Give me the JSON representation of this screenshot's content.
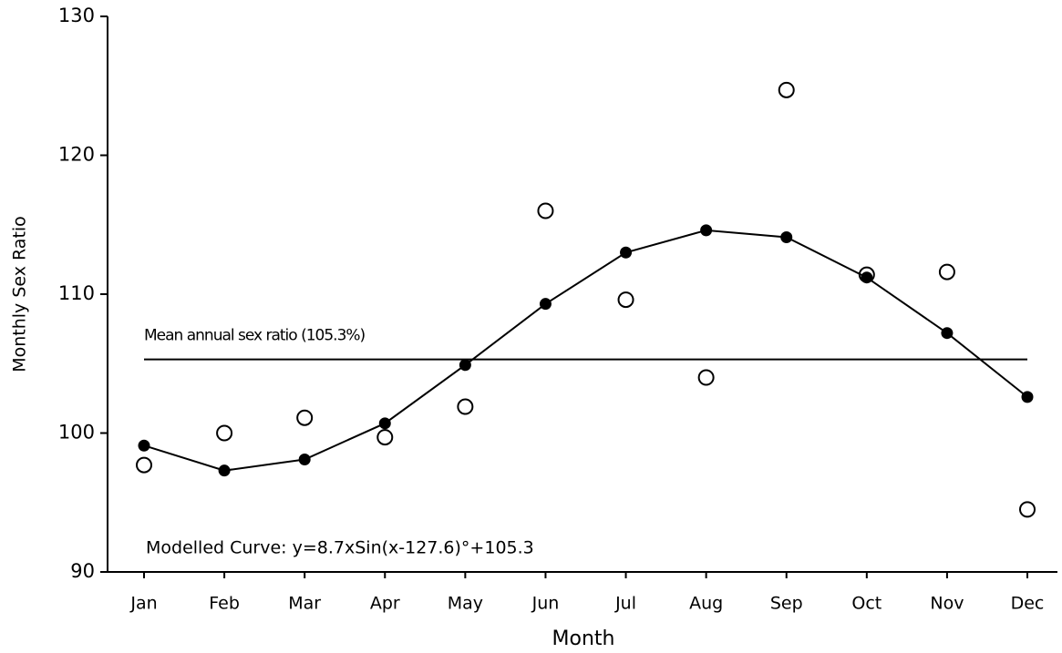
{
  "chart_data": {
    "type": "line",
    "x_label": "Month",
    "y_label": "Monthly Sex Ratio",
    "categories": [
      "Jan",
      "Feb",
      "Mar",
      "Apr",
      "May",
      "Jun",
      "Jul",
      "Aug",
      "Sep",
      "Oct",
      "Nov",
      "Dec"
    ],
    "series": [
      {
        "color": "#000000",
        "marker": "open",
        "line": false,
        "values": [
          97.7,
          100.0,
          101.1,
          99.7,
          101.9,
          116.0,
          109.6,
          104.0,
          124.7,
          111.4,
          111.6,
          94.5
        ]
      },
      {
        "color": "#000000",
        "marker": "filled",
        "line": true,
        "values": [
          99.1,
          97.3,
          98.1,
          100.7,
          104.9,
          109.3,
          113.0,
          114.6,
          114.1,
          111.2,
          107.2,
          102.6
        ]
      }
    ],
    "reference_line": {
      "value": 105.3,
      "label": "Mean annual sex ratio (105.3%)"
    },
    "annotation": "Modelled Curve: y=8.7xSin(x-127.6)°+105.3",
    "ylim": [
      90,
      130
    ],
    "yticks": [
      90,
      100,
      110,
      120,
      130
    ],
    "grid": false
  }
}
